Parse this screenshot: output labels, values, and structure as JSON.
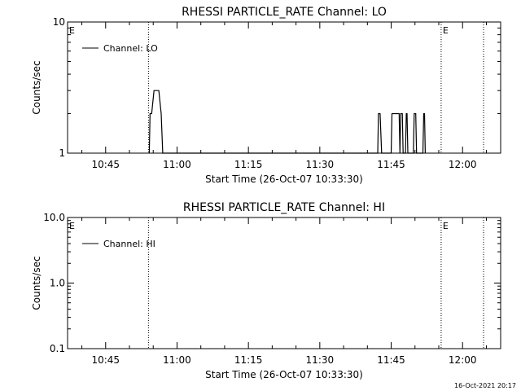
{
  "chart_data": [
    {
      "type": "line",
      "title": "RHESSI PARTICLE_RATE Channel: LO",
      "xlabel": "Start Time (26-Oct-07 10:33:30)",
      "ylabel": "Counts/sec",
      "y_scale": "log",
      "ylim": [
        1,
        10
      ],
      "yticks": [
        1,
        10
      ],
      "ytick_labels": [
        "1",
        "10"
      ],
      "xlim": [
        "10:37:00",
        "12:08:00"
      ],
      "xticks": [
        "10:45",
        "11:00",
        "11:15",
        "11:30",
        "11:45",
        "12:00"
      ],
      "grid": false,
      "legend": {
        "placement": "top-left"
      },
      "series": [
        {
          "name": "Channel: LO",
          "x": [
            "10:54:10",
            "10:54:20",
            "10:54:40",
            "10:55:10",
            "10:56:10",
            "10:56:40",
            "10:57:00",
            "10:57:10",
            "11:42:10",
            "11:42:20",
            "11:42:40",
            "11:43:00",
            "11:43:10",
            "11:45:00",
            "11:45:10",
            "11:46:40",
            "11:46:50",
            "11:47:00",
            "11:47:20",
            "11:47:30",
            "11:48:00",
            "11:48:10",
            "11:48:20",
            "11:48:30",
            "11:49:40",
            "11:49:50",
            "11:50:10",
            "11:50:20",
            "11:51:40",
            "11:51:50",
            "11:52:00",
            "11:52:10"
          ],
          "values": [
            1,
            2,
            2,
            3,
            3,
            2,
            1,
            1,
            1,
            2,
            2,
            1,
            1,
            1,
            2,
            2,
            1,
            2,
            2,
            1,
            1,
            2,
            2,
            1,
            1,
            2,
            2,
            1,
            1,
            2,
            2,
            1
          ]
        }
      ],
      "markers": [
        {
          "time": "10:54:00",
          "label": ""
        },
        {
          "time": "11:55:30",
          "label": "E"
        },
        {
          "time": "12:12:30",
          "label": ""
        }
      ],
      "corner_label": "E"
    },
    {
      "type": "line",
      "title": "RHESSI PARTICLE_RATE Channel: HI",
      "xlabel": "Start Time (26-Oct-07 10:33:30)",
      "ylabel": "Counts/sec",
      "y_scale": "log",
      "ylim": [
        0.1,
        10
      ],
      "yticks": [
        0.1,
        1,
        10
      ],
      "ytick_labels": [
        "0.1",
        "1.0",
        "10.0"
      ],
      "xlim": [
        "10:37:00",
        "12:08:00"
      ],
      "xticks": [
        "10:45",
        "11:00",
        "11:15",
        "11:30",
        "11:45",
        "12:00"
      ],
      "grid": false,
      "legend": {
        "placement": "top-left"
      },
      "series": [
        {
          "name": "Channel: HI",
          "x": [],
          "values": []
        }
      ],
      "markers": [
        {
          "time": "10:54:00",
          "label": ""
        },
        {
          "time": "11:55:30",
          "label": "E"
        },
        {
          "time": "12:12:30",
          "label": ""
        }
      ],
      "corner_label": "E"
    }
  ],
  "timestamp": "16-Oct-2021 20:17"
}
